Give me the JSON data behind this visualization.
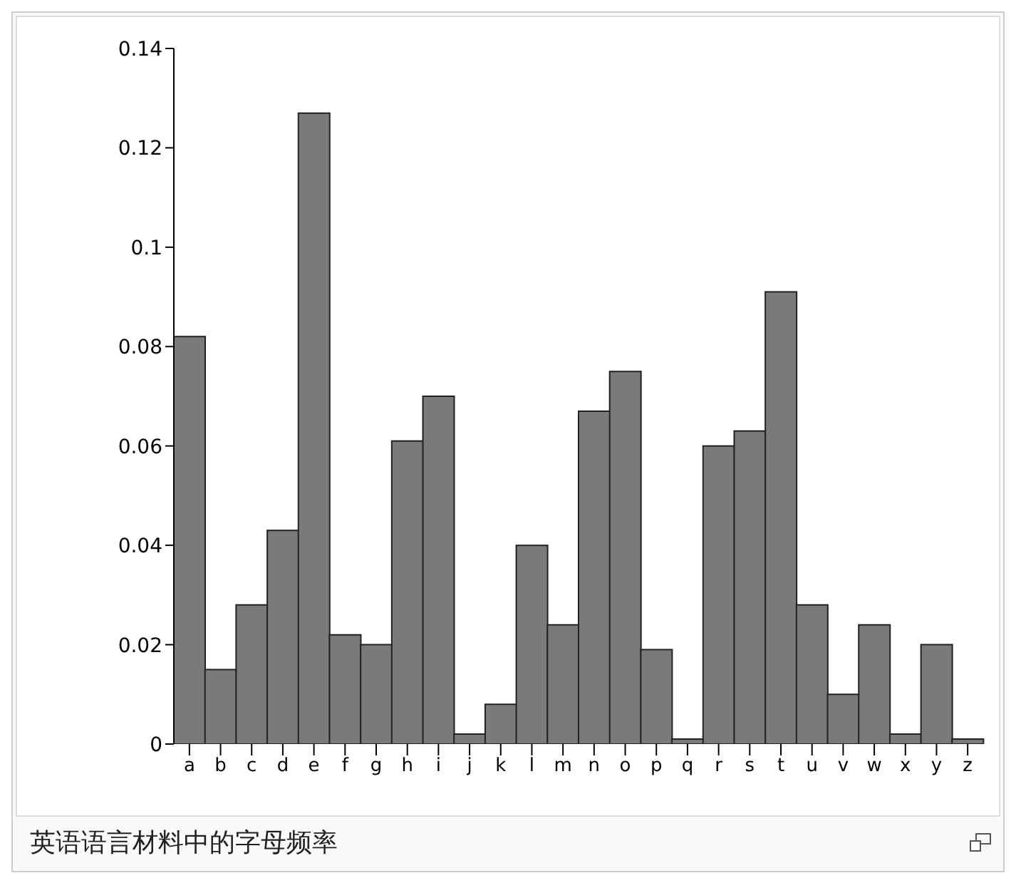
{
  "chart_data": {
    "type": "bar",
    "categories": [
      "a",
      "b",
      "c",
      "d",
      "e",
      "f",
      "g",
      "h",
      "i",
      "j",
      "k",
      "l",
      "m",
      "n",
      "o",
      "p",
      "q",
      "r",
      "s",
      "t",
      "u",
      "v",
      "w",
      "x",
      "y",
      "z"
    ],
    "values": [
      0.082,
      0.015,
      0.028,
      0.043,
      0.127,
      0.022,
      0.02,
      0.061,
      0.07,
      0.002,
      0.008,
      0.04,
      0.024,
      0.067,
      0.075,
      0.019,
      0.001,
      0.06,
      0.063,
      0.091,
      0.028,
      0.01,
      0.024,
      0.002,
      0.02,
      0.001
    ],
    "color": "#7a7a7a",
    "ylim": [
      0,
      0.14
    ],
    "yticks": [
      0,
      0.02,
      0.04,
      0.06,
      0.08,
      0.1,
      0.12,
      0.14
    ],
    "grid": false,
    "annotations": [
      "英语语言材料中的字母频率"
    ]
  }
}
